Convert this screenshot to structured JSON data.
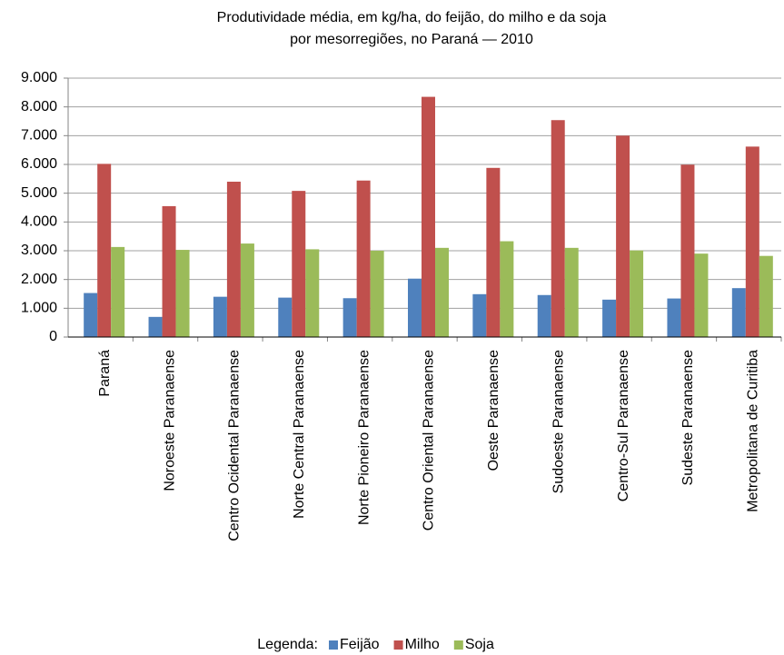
{
  "chart_data": {
    "type": "bar",
    "title": [
      "Produtividade média, em kg/ha, do feijão, do milho e da soja",
      "por mesorregiões, no Paraná — 2010"
    ],
    "categories": [
      "Paraná",
      "Noroeste Paranaense",
      "Centro Ocidental Paranaense",
      "Norte Central Paranaense",
      "Norte Pioneiro Paranaense",
      "Centro Oriental Paranaense",
      "Oeste Paranaense",
      "Sudoeste Paranaense",
      "Centro-Sul Paranaense",
      "Sudeste Paranaense",
      "Metropolitana de Curitiba"
    ],
    "series": [
      {
        "name": "Feijão",
        "color": "#4f81bd",
        "values": [
          1530,
          700,
          1400,
          1370,
          1350,
          2030,
          1490,
          1460,
          1300,
          1340,
          1700
        ]
      },
      {
        "name": "Milho",
        "color": "#c0504d",
        "values": [
          6020,
          4550,
          5400,
          5080,
          5440,
          8350,
          5880,
          7540,
          7000,
          5990,
          6620
        ]
      },
      {
        "name": "Soja",
        "color": "#9bbb59",
        "values": [
          3130,
          3030,
          3250,
          3050,
          3000,
          3100,
          3330,
          3100,
          3010,
          2900,
          2820
        ]
      }
    ],
    "ylim": [
      0,
      9000
    ],
    "yticks": [
      0,
      {
        "value": 1000,
        "label": "1.000"
      },
      {
        "value": 2000,
        "label": "2.000"
      },
      {
        "value": 3000,
        "label": "3.000"
      },
      {
        "value": 4000,
        "label": "4.000"
      },
      {
        "value": 5000,
        "label": "5.000"
      },
      {
        "value": 6000,
        "label": "6.000"
      },
      {
        "value": 7000,
        "label": "7.000"
      },
      {
        "value": 8000,
        "label": "8.000"
      },
      {
        "value": 9000,
        "label": "9.000"
      }
    ],
    "grid": true,
    "legend_title": "Legenda:",
    "legend_position": "bottom"
  }
}
